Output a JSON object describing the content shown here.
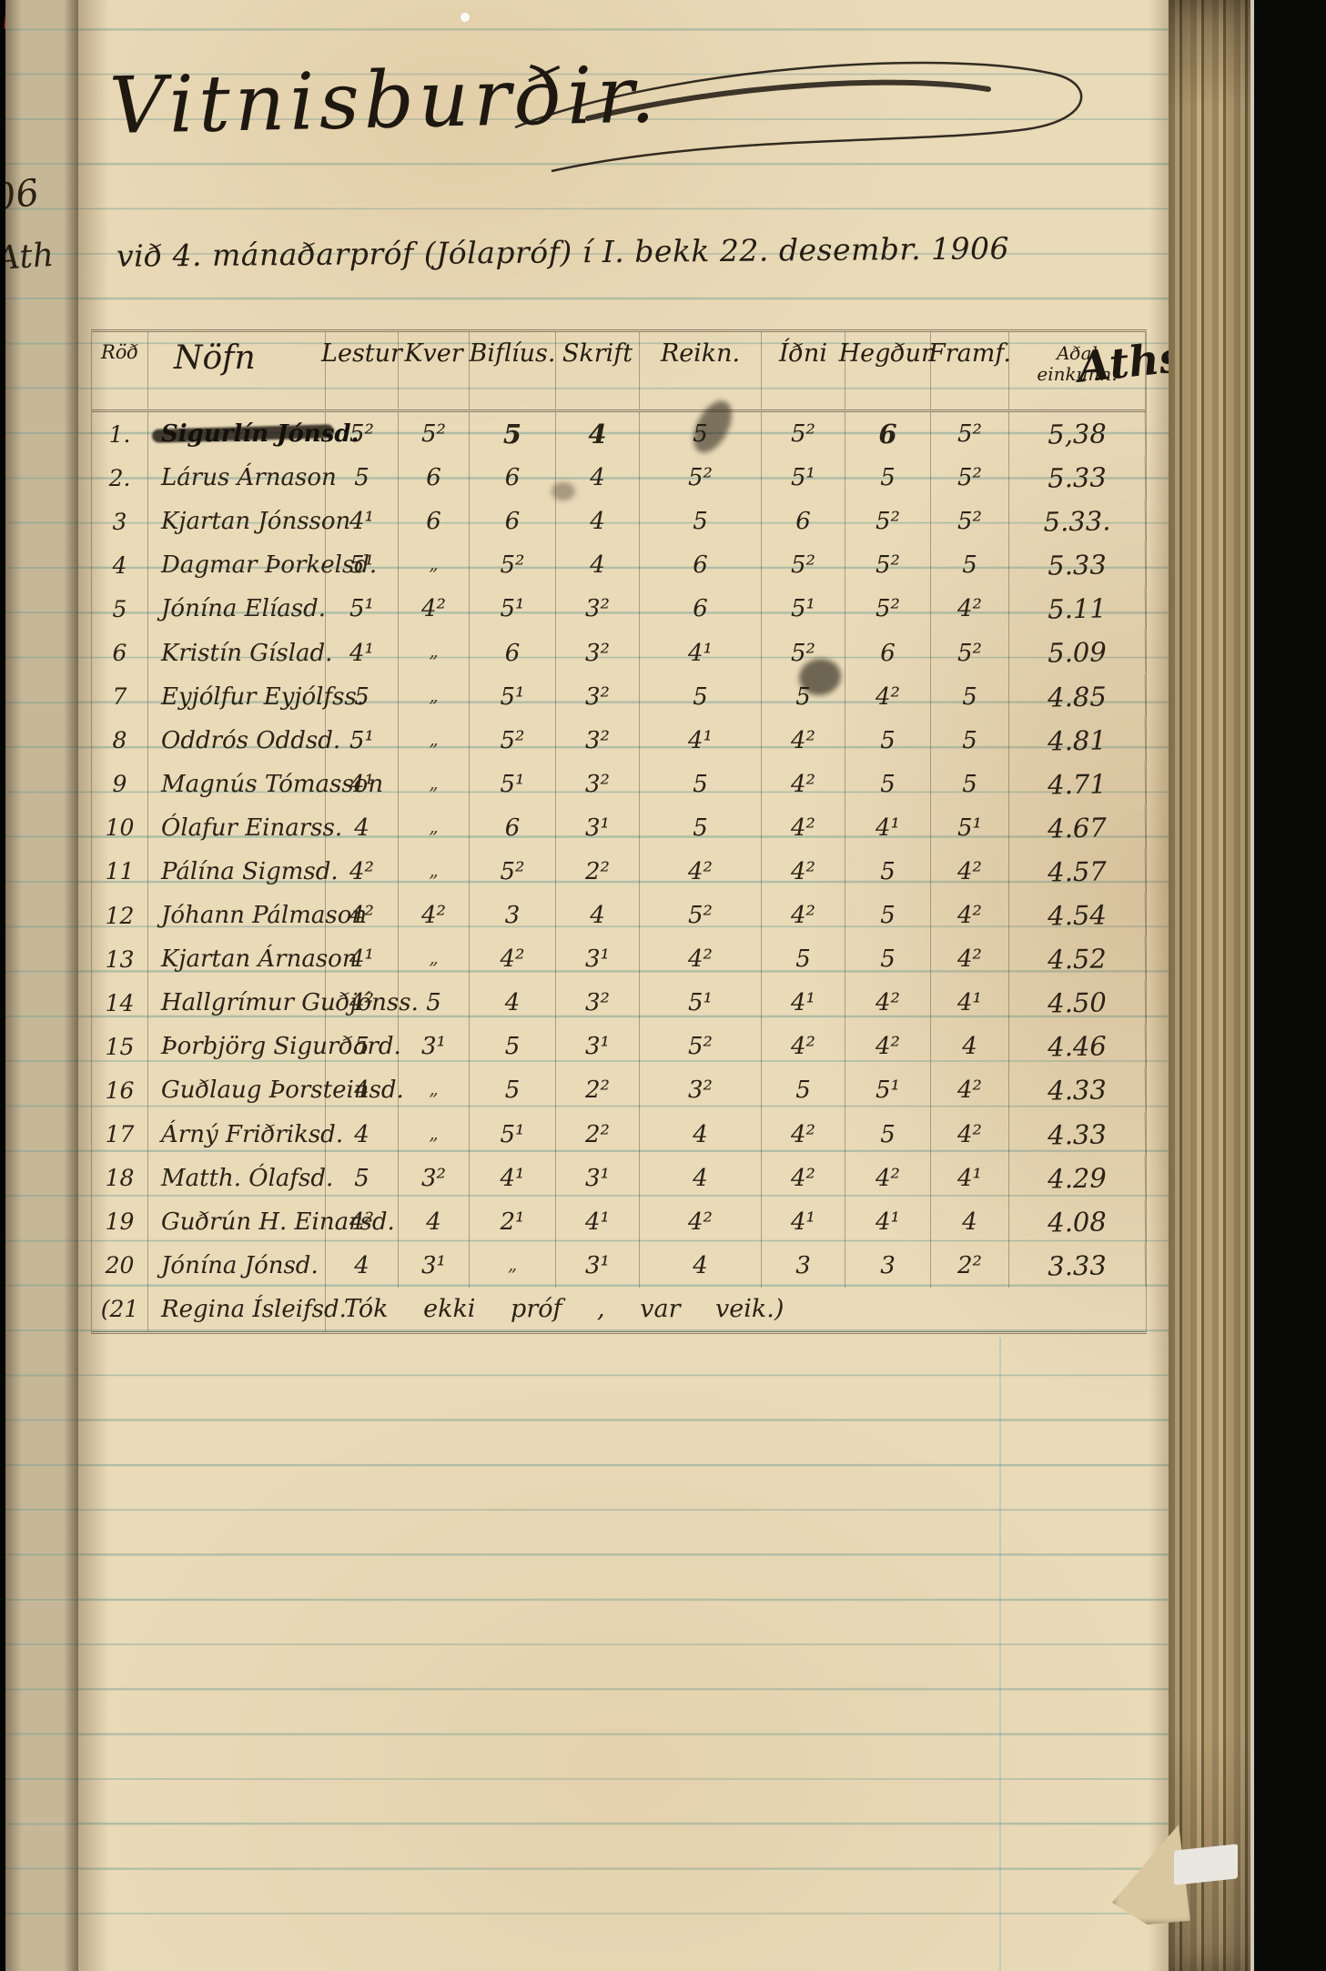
{
  "page": {
    "title": "Vitnisburðir.",
    "subtitle": "við 4. mánaðarpróf (Jólapróf) í I. bekk 22. desembr. 1906"
  },
  "margin": {
    "year_fragment": "06",
    "aths_fragment": "Ath"
  },
  "table": {
    "headers": [
      "Röð",
      "Nöfn",
      "Lestur",
      "Kver",
      "Biflíus.",
      "Skrift",
      "Reikn.",
      "Íðni",
      "Hegðun",
      "Framf.",
      "Aðal\neinkunn."
    ],
    "aths_label": "Aths.",
    "rows": [
      {
        "num": "1.",
        "name": "Sigurlín Jónsd.",
        "struck": true,
        "bold_cols": [
          2,
          3,
          6
        ],
        "grades": [
          "5²",
          "5²",
          "5",
          "4",
          "5",
          "5²",
          "6",
          "5²",
          "5,38"
        ]
      },
      {
        "num": "2.",
        "name": "Lárus Árnason",
        "grades": [
          "5",
          "6",
          "6",
          "4",
          "5²",
          "5¹",
          "5",
          "5²",
          "5.33"
        ]
      },
      {
        "num": "3",
        "name": "Kjartan Jónsson",
        "grades": [
          "4¹",
          "6",
          "6",
          "4",
          "5",
          "6",
          "5²",
          "5²",
          "5.33."
        ]
      },
      {
        "num": "4",
        "name": "Dagmar Þorkelsd.",
        "grades": [
          "5¹",
          "„",
          "5²",
          "4",
          "6",
          "5²",
          "5²",
          "5",
          "5.33"
        ]
      },
      {
        "num": "5",
        "name": "Jónína Elíasd.",
        "grades": [
          "5¹",
          "4²",
          "5¹",
          "3²",
          "6",
          "5¹",
          "5²",
          "4²",
          "5.11"
        ]
      },
      {
        "num": "6",
        "name": "Kristín Gíslad.",
        "grades": [
          "4¹",
          "„",
          "6",
          "3²",
          "4¹",
          "5²",
          "6",
          "5²",
          "5.09"
        ]
      },
      {
        "num": "7",
        "name": "Eyjólfur Eyjólfss.",
        "grades": [
          "5",
          "„",
          "5¹",
          "3²",
          "5",
          "5",
          "4²",
          "5",
          "4.85"
        ]
      },
      {
        "num": "8",
        "name": "Oddrós Oddsd.",
        "grades": [
          "5¹",
          "„",
          "5²",
          "3²",
          "4¹",
          "4²",
          "5",
          "5",
          "4.81"
        ]
      },
      {
        "num": "9",
        "name": "Magnús Tómasson",
        "grades": [
          "4¹",
          "„",
          "5¹",
          "3²",
          "5",
          "4²",
          "5",
          "5",
          "4.71"
        ]
      },
      {
        "num": "10",
        "name": "Ólafur Einarss.",
        "grades": [
          "4",
          "„",
          "6",
          "3¹",
          "5",
          "4²",
          "4¹",
          "5¹",
          "4.67"
        ]
      },
      {
        "num": "11",
        "name": "Pálína Sigmsd.",
        "grades": [
          "4²",
          "„",
          "5²",
          "2²",
          "4²",
          "4²",
          "5",
          "4²",
          "4.57"
        ]
      },
      {
        "num": "12",
        "name": "Jóhann Pálmason",
        "grades": [
          "4²",
          "4²",
          "3",
          "4",
          "5²",
          "4²",
          "5",
          "4²",
          "4.54"
        ]
      },
      {
        "num": "13",
        "name": "Kjartan Árnason",
        "grades": [
          "4¹",
          "„",
          "4²",
          "3¹",
          "4²",
          "5",
          "5",
          "4²",
          "4.52"
        ]
      },
      {
        "num": "14",
        "name": "Hallgrímur Guðjónss.",
        "grades": [
          "4²",
          "5",
          "4",
          "3²",
          "5¹",
          "4¹",
          "4²",
          "4¹",
          "4.50"
        ]
      },
      {
        "num": "15",
        "name": "Þorbjörg Sigurðard.",
        "grades": [
          "5",
          "3¹",
          "5",
          "3¹",
          "5²",
          "4²",
          "4²",
          "4",
          "4.46"
        ]
      },
      {
        "num": "16",
        "name": "Guðlaug Þorsteinsd.",
        "grades": [
          "4",
          "„",
          "5",
          "2²",
          "3²",
          "5",
          "5¹",
          "4²",
          "4.33"
        ]
      },
      {
        "num": "17",
        "name": "Árný Friðriksd.",
        "grades": [
          "4",
          "„",
          "5¹",
          "2²",
          "4",
          "4²",
          "5",
          "4²",
          "4.33"
        ]
      },
      {
        "num": "18",
        "name": "Matth. Ólafsd.",
        "grades": [
          "5",
          "3²",
          "4¹",
          "3¹",
          "4",
          "4²",
          "4²",
          "4¹",
          "4.29"
        ]
      },
      {
        "num": "19",
        "name": "Guðrún H. Einarsd.",
        "grades": [
          "4²",
          "4",
          "2¹",
          "4¹",
          "4²",
          "4¹",
          "4¹",
          "4",
          "4.08"
        ]
      },
      {
        "num": "20",
        "name": "Jónína Jónsd.",
        "grades": [
          "4",
          "3¹",
          "„",
          "3¹",
          "4",
          "3",
          "3",
          "2²",
          "3.33"
        ]
      },
      {
        "num": "(21",
        "name": "Regina Ísleifsd.",
        "note": "Tók ekki próf , var veik.)"
      }
    ]
  }
}
